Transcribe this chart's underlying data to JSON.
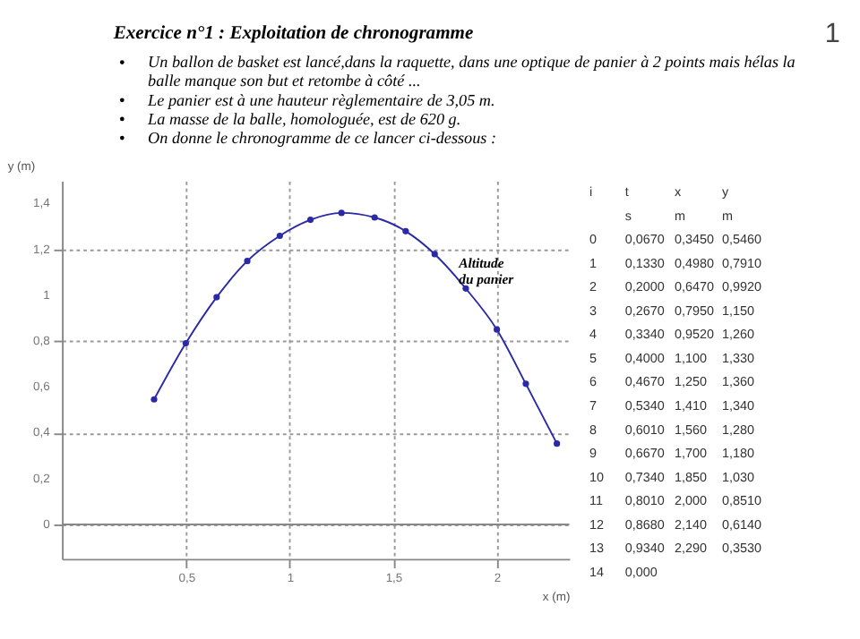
{
  "chart_data": {
    "type": "line",
    "annotations": [
      "Exercice n°1 : Exploitation de chronogramme",
      "Un ballon de basket est lancé,dans la raquette, dans une optique de panier à 2 points mais hélas la balle manque son but et retombe à côté ...",
      "Le panier est à une hauteur règlementaire de 3,05 m.",
      "La masse de la balle, homologuée, est de 620 g.",
      "On donne le chronogramme de ce lancer ci-dessous :",
      "1",
      {
        "text": "Altitude du panier",
        "x": 1.85,
        "y": 1.03
      },
      "i t x y",
      "s m m",
      "0 0,0670 0,3450 0,5460",
      "1 0,1330 0,4980 0,7910",
      "2 0,2000 0,6470 0,9920",
      "3 0,2670 0,7950 1,150",
      "4 0,3340 0,9520 1,260",
      "5 0,4000 1,100 1,330",
      "6 0,4670 1,250 1,360",
      "7 0,5340 1,410 1,340",
      "8 0,6010 1,560 1,280",
      "9 0,6670 1,700 1,180",
      "10 0,7340 1,850 1,030",
      "11 0,8010 2,000 0,8510",
      "12 0,8680 2,140 0,6140",
      "13 0,9340 2,290 0,3530",
      "14 0,000"
    ],
    "xlabel": "x (m)",
    "ylabel": "y (m)",
    "x": [
      0.345,
      0.498,
      0.647,
      0.795,
      0.952,
      1.1,
      1.25,
      1.41,
      1.56,
      1.7,
      1.85,
      2.0,
      2.14,
      2.29
    ],
    "series": [
      {
        "color": "#2a2aa8",
        "values": [
          0.546,
          0.791,
          0.992,
          1.15,
          1.26,
          1.33,
          1.36,
          1.34,
          1.28,
          1.18,
          1.03,
          0.851,
          0.614,
          0.353
        ]
      }
    ],
    "xlim": [
      -0.1,
      2.35
    ],
    "ylim": [
      -0.15,
      1.5
    ],
    "xticks": [
      {
        "value": 0.5,
        "label": "0,5"
      },
      1,
      {
        "value": 1.5,
        "label": "1,5"
      },
      2
    ],
    "yticks": [
      0,
      {
        "value": 0.2,
        "label": "0,2"
      },
      {
        "value": 0.4,
        "label": "0,4"
      },
      {
        "value": 0.6,
        "label": "0,6"
      },
      {
        "value": 0.8,
        "label": "0,8"
      },
      1,
      {
        "value": 1.2,
        "label": "1,2"
      },
      {
        "value": 1.4,
        "label": "1,4"
      }
    ],
    "ref_lines": [
      {
        "axis": "y",
        "value": 0,
        "color": "#888888"
      }
    ],
    "grid": true,
    "legend": false,
    "marker": "circle",
    "line_style": "solid"
  }
}
